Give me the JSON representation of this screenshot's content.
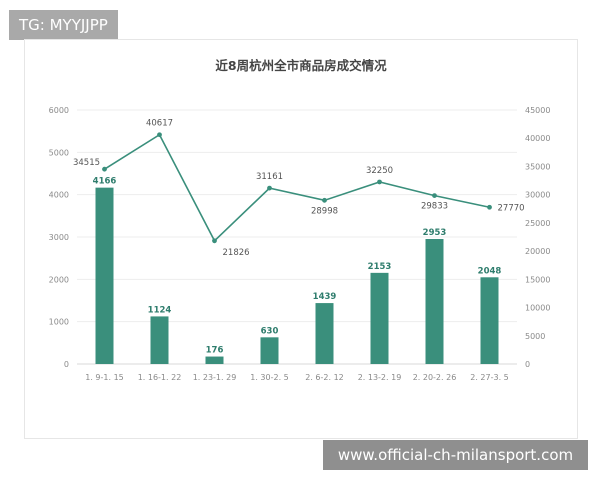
{
  "overlay": {
    "tag": "TG: MYYJJPP",
    "url": "www.official-ch-milansport.com"
  },
  "colors": {
    "bar": "#3a8f7c",
    "line": "#3a8f7c",
    "grid": "#ededed"
  },
  "chart_data": {
    "type": "bar+line",
    "title": "近8周杭州全市商品房成交情况",
    "categories": [
      "1. 9-1. 15",
      "1. 16-1. 22",
      "1. 23-1. 29",
      "1. 30-2. 5",
      "2. 6-2. 12",
      "2. 13-2. 19",
      "2. 20-2. 26",
      "2. 27-3. 5"
    ],
    "left_axis": {
      "range": [
        0,
        6000
      ],
      "ticks": [
        "0",
        "1000",
        "2000",
        "3000",
        "4000",
        "5000",
        "6000"
      ]
    },
    "right_axis": {
      "range": [
        0,
        45000
      ],
      "ticks": [
        "0",
        "5000",
        "10000",
        "15000",
        "20000",
        "25000",
        "30000",
        "35000",
        "40000",
        "45000"
      ]
    },
    "series": [
      {
        "type": "bar",
        "axis": "left",
        "values": [
          4166,
          1124,
          176,
          630,
          1439,
          2153,
          2953,
          2048
        ]
      },
      {
        "type": "line",
        "axis": "right",
        "values": [
          34515,
          40617,
          21826,
          31161,
          28998,
          32250,
          29833,
          27770
        ]
      }
    ],
    "grid": true,
    "legend": "none"
  }
}
